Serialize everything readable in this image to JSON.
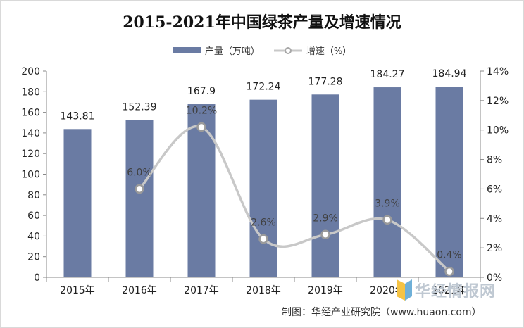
{
  "chart_data": {
    "type": "bar",
    "title": "2015-2021年中国绿茶产量及增速情况",
    "categories": [
      "2015年",
      "2016年",
      "2017年",
      "2018年",
      "2019年",
      "2020年",
      "2021年"
    ],
    "series": [
      {
        "name": "产量（万吨）",
        "type": "bar",
        "axis": "left",
        "color": "#6a7ba3",
        "values": [
          143.81,
          152.39,
          167.9,
          172.24,
          177.28,
          184.27,
          184.94
        ],
        "labels": [
          "143.81",
          "152.39",
          "167.9",
          "172.24",
          "177.28",
          "184.27",
          "184.94"
        ]
      },
      {
        "name": "增速（%）",
        "type": "line",
        "axis": "right",
        "color": "#c8c8c8",
        "values": [
          null,
          6.0,
          10.2,
          2.6,
          2.9,
          3.9,
          0.4
        ],
        "labels": [
          "",
          "6.0%",
          "10.2%",
          "2.6%",
          "2.9%",
          "3.9%",
          "0.4%"
        ]
      }
    ],
    "y_left": {
      "min": 0,
      "max": 200,
      "step": 20,
      "ticks": [
        "0",
        "20",
        "40",
        "60",
        "80",
        "100",
        "120",
        "140",
        "160",
        "180",
        "200"
      ]
    },
    "y_right": {
      "min": 0,
      "max": 14,
      "step": 2,
      "ticks": [
        "0%",
        "2%",
        "4%",
        "6%",
        "8%",
        "10%",
        "12%",
        "14%"
      ]
    },
    "grid": false,
    "legend_position": "top-center"
  },
  "source": "制图：华经产业研究院（www.huaon.com）",
  "watermark": {
    "text": "华经情报网",
    "colors": [
      "#f5c344",
      "#6fb0d8"
    ]
  }
}
